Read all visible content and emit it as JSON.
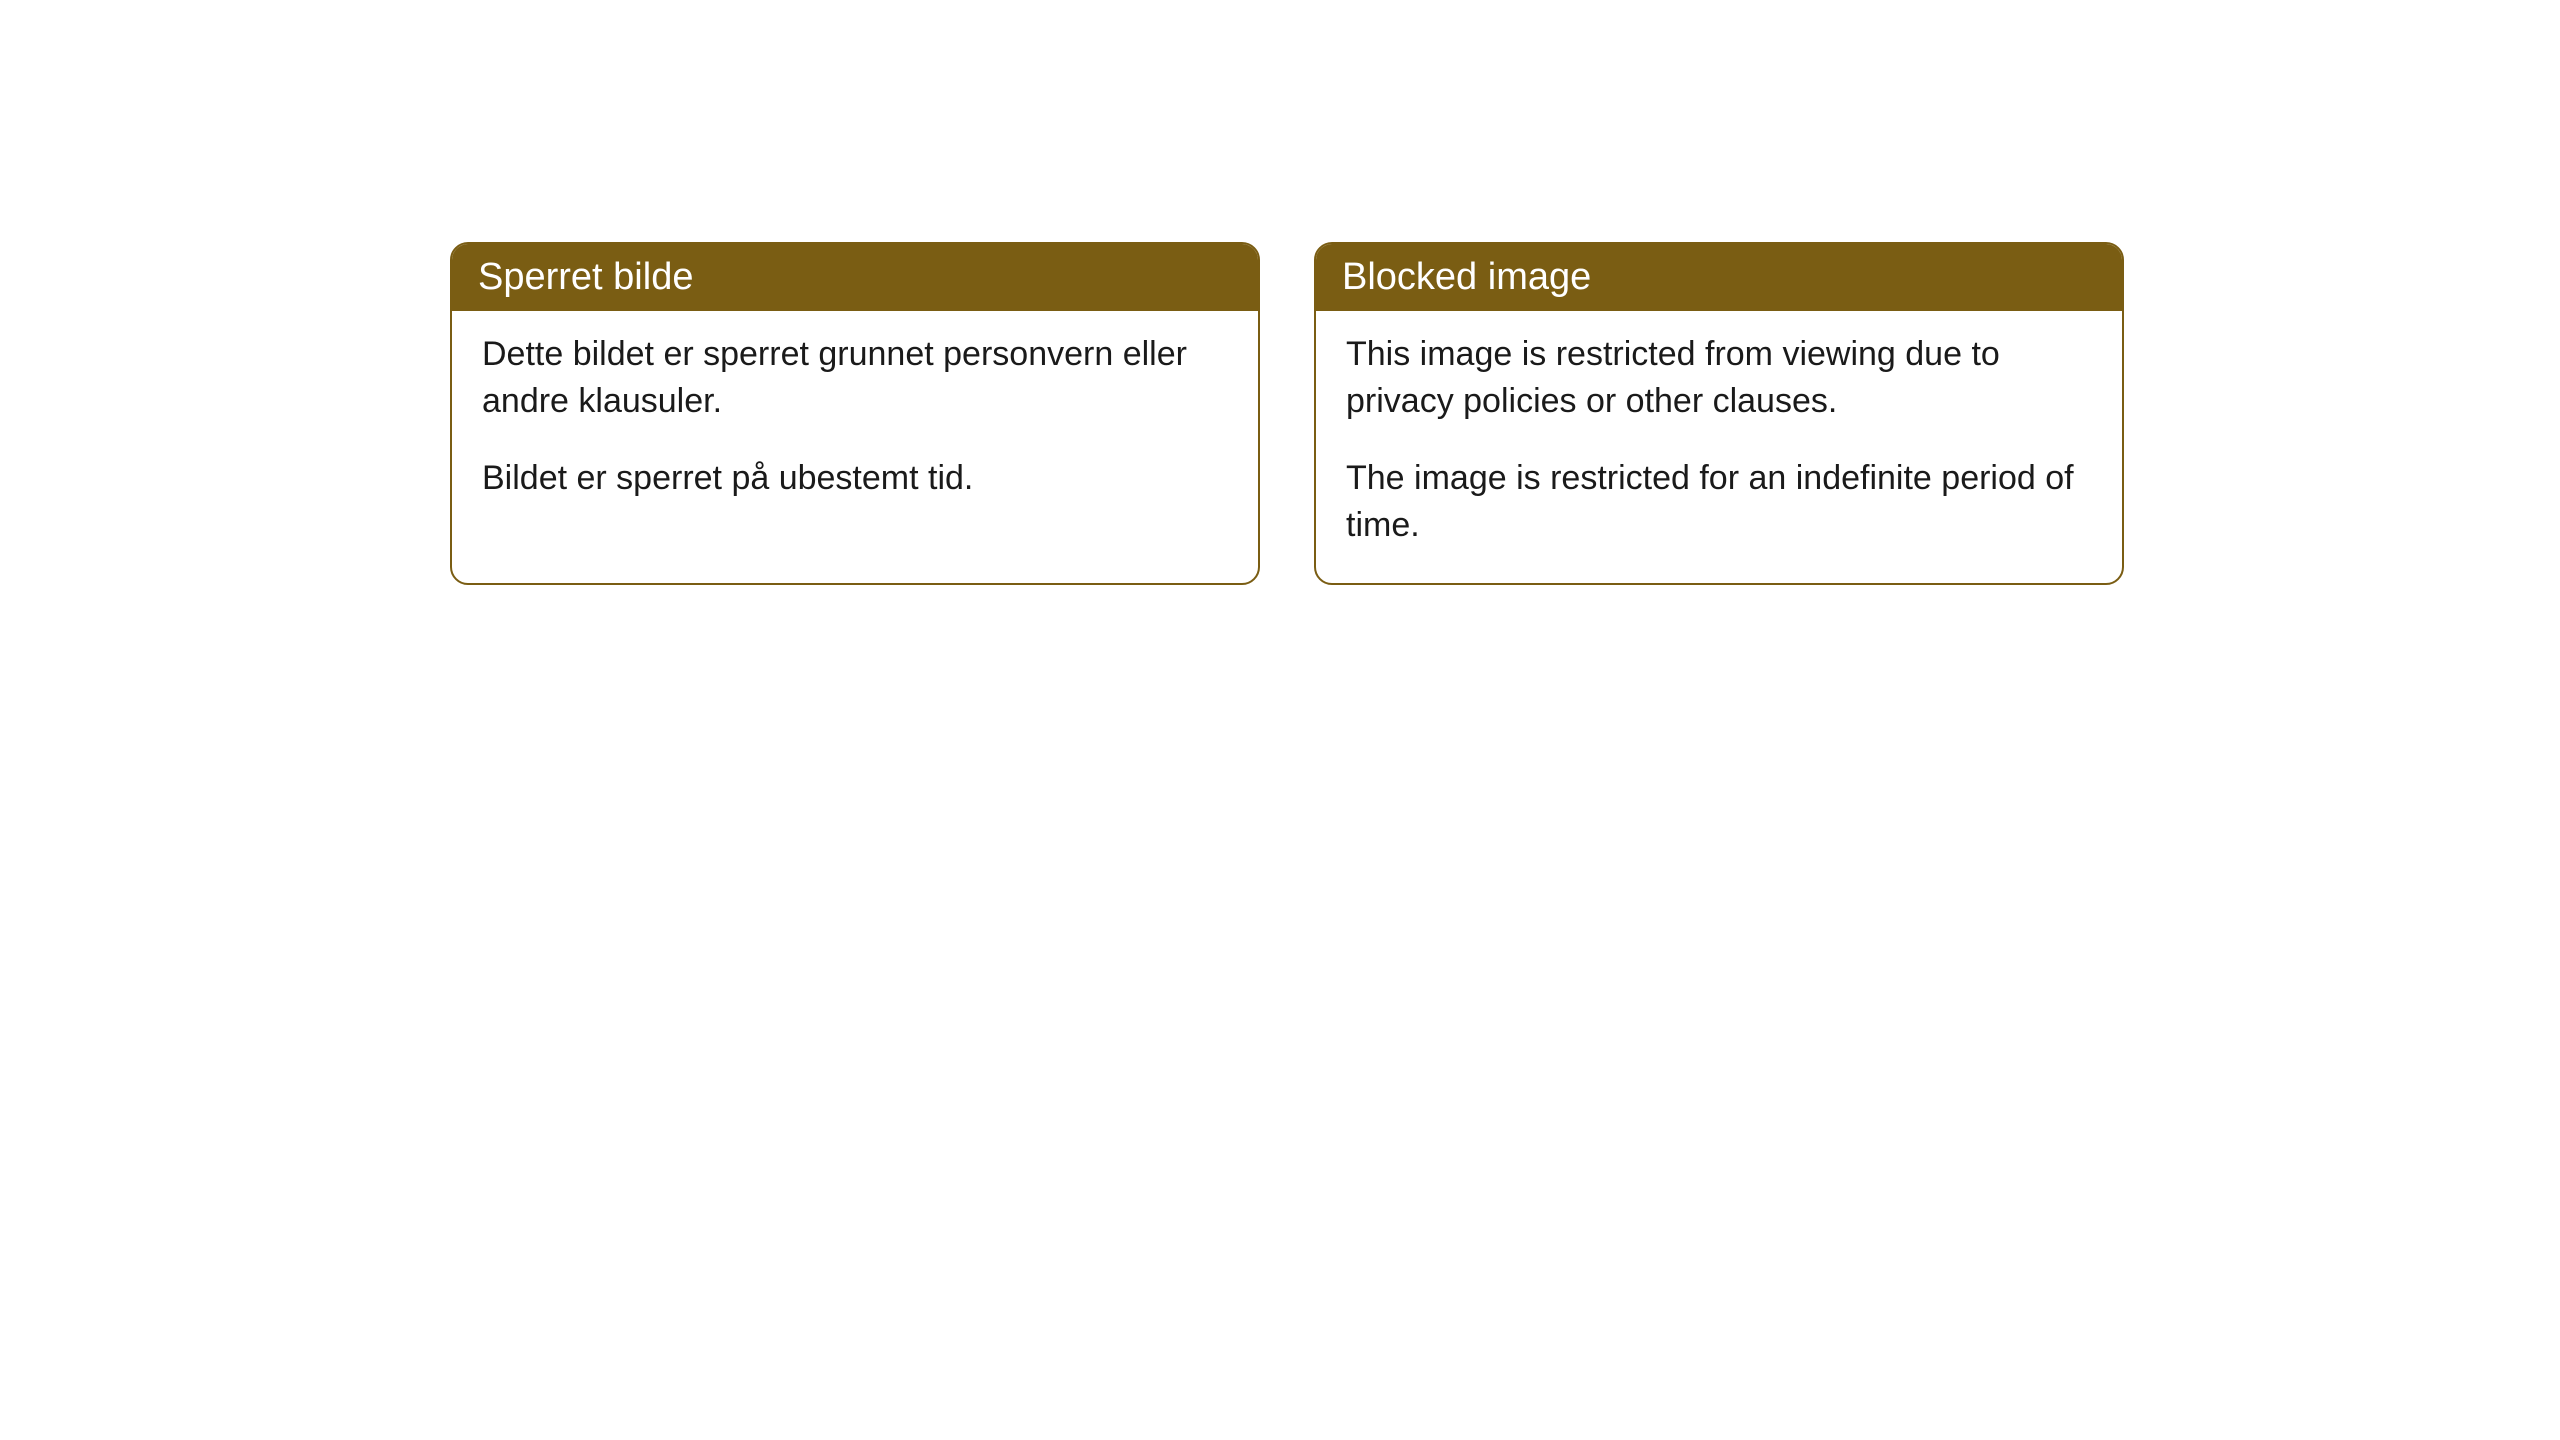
{
  "cards": [
    {
      "title": "Sperret bilde",
      "paragraph1": "Dette bildet er sperret grunnet personvern eller andre klausuler.",
      "paragraph2": "Bildet er sperret på ubestemt tid."
    },
    {
      "title": "Blocked image",
      "paragraph1": "This image is restricted from viewing due to privacy policies or other clauses.",
      "paragraph2": "The image is restricted for an indefinite period of time."
    }
  ],
  "style": {
    "header_background": "#7a5d13",
    "header_text_color": "#ffffff",
    "border_color": "#7a5d13",
    "body_background": "#ffffff",
    "body_text_color": "#1a1a1a",
    "border_radius": 18,
    "title_fontsize": 38,
    "body_fontsize": 34
  }
}
